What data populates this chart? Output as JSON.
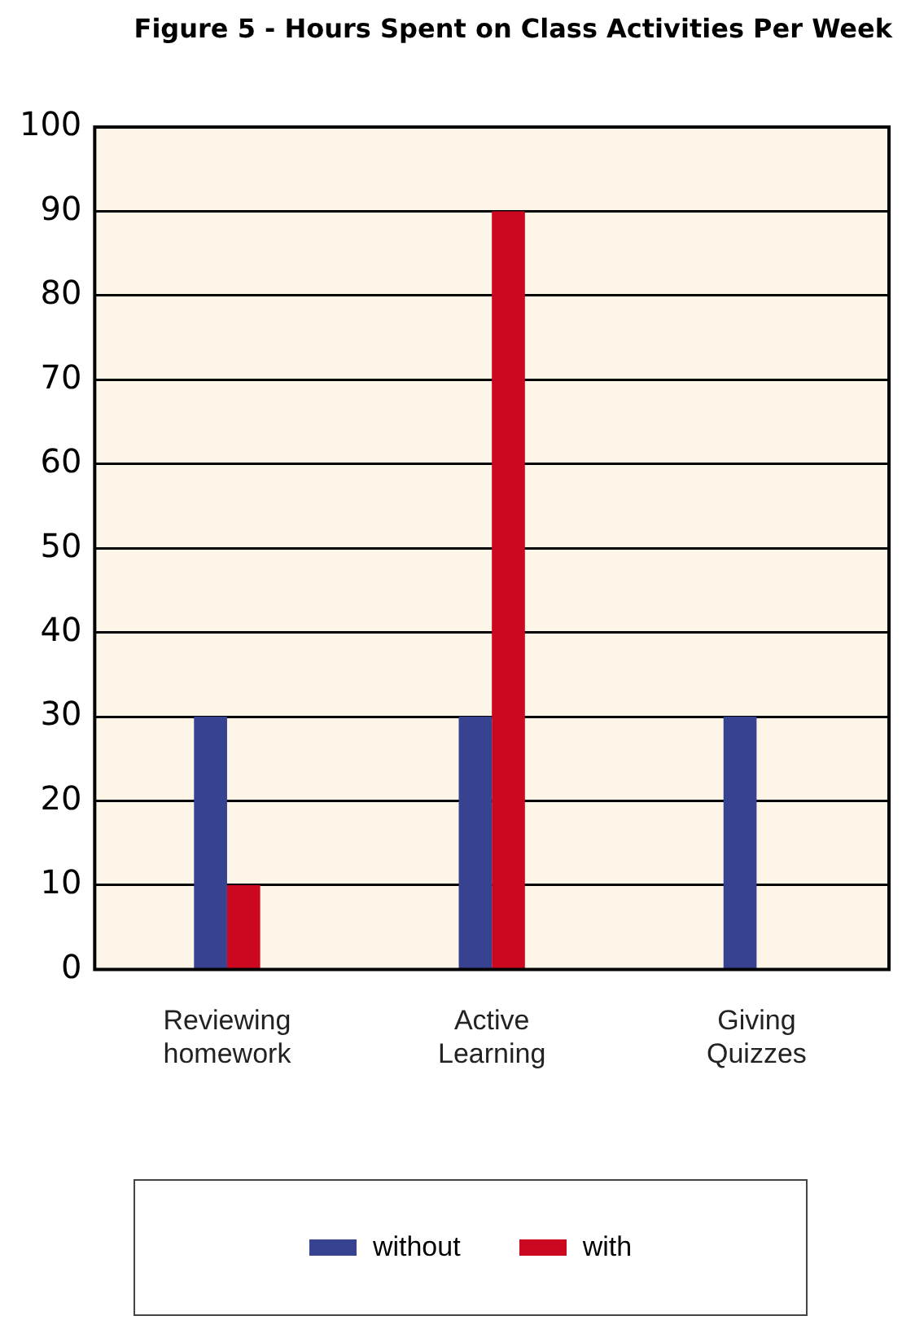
{
  "chart_data": {
    "type": "bar",
    "title": "Figure 5 - Hours Spent on Class Activities Per Week",
    "categories": [
      "Reviewing homework",
      "Active Learning",
      "Giving Quizzes"
    ],
    "series": [
      {
        "name": "without",
        "color": "#374291",
        "values": [
          30,
          30,
          30
        ]
      },
      {
        "name": "with",
        "color": "#cc0820",
        "values": [
          10,
          90,
          0
        ]
      }
    ],
    "ylim": [
      0,
      100
    ],
    "yticks": [
      0,
      10,
      20,
      30,
      40,
      50,
      60,
      70,
      80,
      90,
      100
    ],
    "grid": "y",
    "legend": "bottom"
  }
}
